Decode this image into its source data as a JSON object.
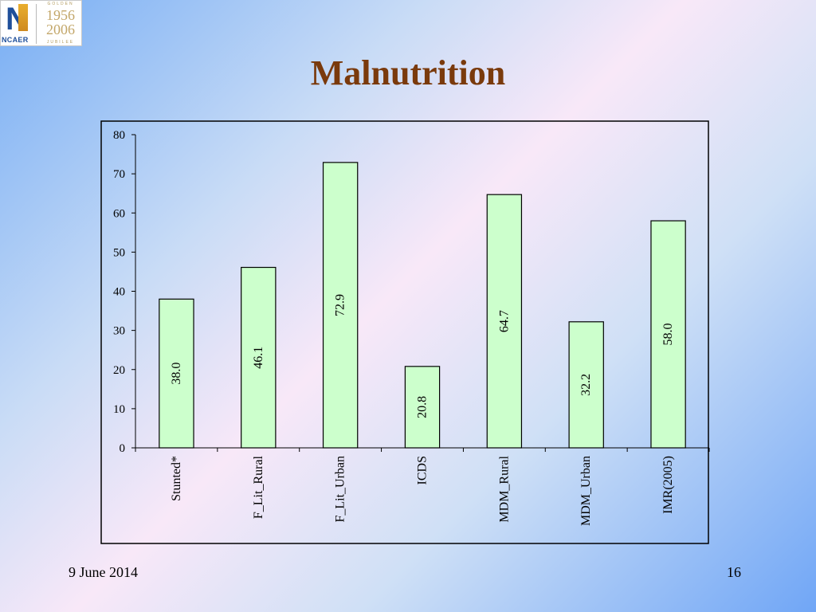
{
  "logo": {
    "org": "NCAER",
    "golden": "GOLDEN",
    "year_start": "1956",
    "year_end": "2006",
    "jubilee": "JUBILEE"
  },
  "slide": {
    "title": "Malnutrition",
    "footer_date": "9 June 2014",
    "page_number": "16"
  },
  "colors": {
    "bar_fill": "#ccffcc",
    "bar_stroke": "#000000",
    "title": "#7a3a0c"
  },
  "chart_data": {
    "type": "bar",
    "title": "",
    "xlabel": "",
    "ylabel": "",
    "categories": [
      "Stunted*",
      "F_Lit_Rural",
      "F_Lit_Urban",
      "ICDS",
      "MDM_Rural",
      "MDM_Urban",
      "IMR(2005)"
    ],
    "values": [
      38.0,
      46.1,
      72.9,
      20.8,
      64.7,
      32.2,
      58.0
    ],
    "value_labels": [
      "38.0",
      "46.1",
      "72.9",
      "20.8",
      "64.7",
      "32.2",
      "58.0"
    ],
    "ylim": [
      0,
      80
    ],
    "yticks": [
      0,
      10,
      20,
      30,
      40,
      50,
      60,
      70,
      80
    ],
    "grid": false,
    "legend": "none"
  }
}
